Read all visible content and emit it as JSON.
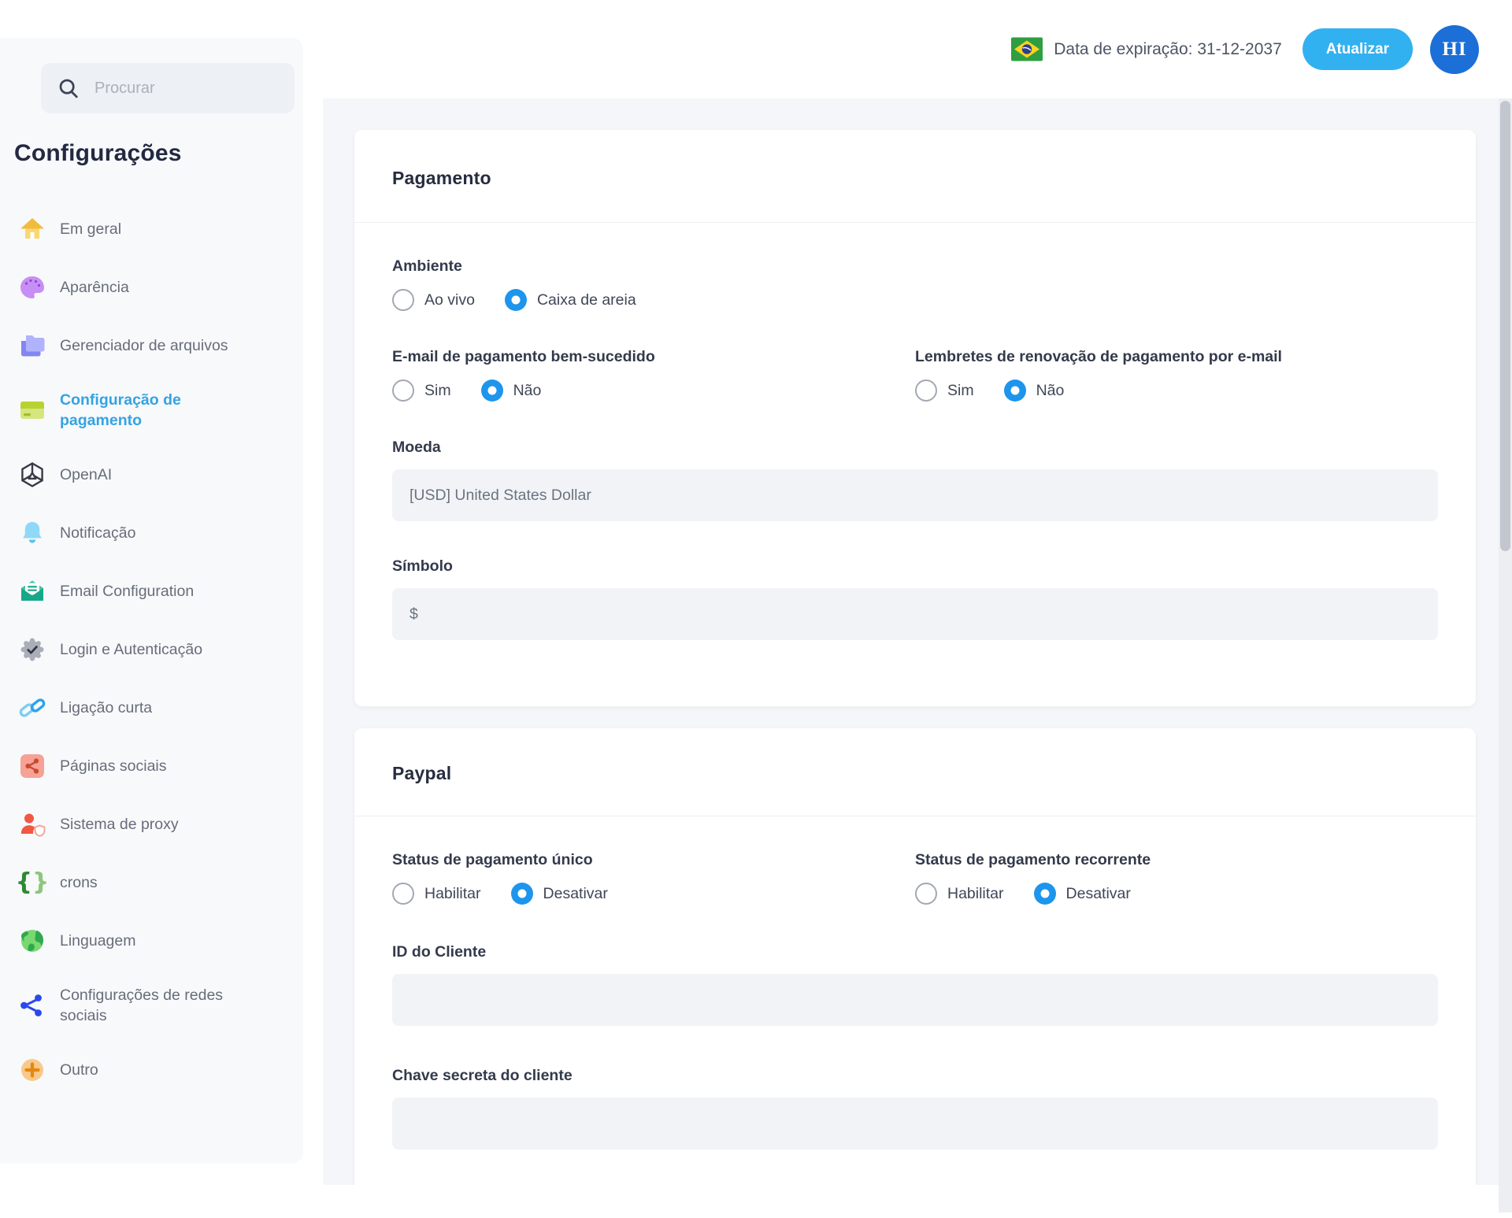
{
  "sidebar": {
    "search_placeholder": "Procurar",
    "title": "Configurações",
    "items": [
      {
        "label": "Em geral",
        "icon": "home",
        "active": false
      },
      {
        "label": "Aparência",
        "icon": "palette",
        "active": false
      },
      {
        "label": "Gerenciador de arquivos",
        "icon": "folder",
        "active": false
      },
      {
        "label": "Configuração de pagamento",
        "icon": "credit-card",
        "active": true
      },
      {
        "label": "OpenAI",
        "icon": "openai",
        "active": false
      },
      {
        "label": "Notificação",
        "icon": "bell",
        "active": false
      },
      {
        "label": "Email Configuration",
        "icon": "envelope",
        "active": false
      },
      {
        "label": "Login e Autenticação",
        "icon": "badge-check",
        "active": false
      },
      {
        "label": "Ligação curta",
        "icon": "link",
        "active": false
      },
      {
        "label": "Páginas sociais",
        "icon": "share-square",
        "active": false
      },
      {
        "label": "Sistema de proxy",
        "icon": "user-shield",
        "active": false
      },
      {
        "label": "crons",
        "icon": "braces",
        "active": false
      },
      {
        "label": "Linguagem",
        "icon": "globe",
        "active": false
      },
      {
        "label": "Configurações de redes sociais",
        "icon": "share-nodes",
        "active": false
      },
      {
        "label": "Outro",
        "icon": "plus-circle",
        "active": false
      }
    ]
  },
  "topbar": {
    "flag_icon": "brazil-flag",
    "expiration_text": "Data de expiração: 31-12-2037",
    "update_button": "Atualizar",
    "avatar_initials": "HI"
  },
  "payment_card": {
    "title": "Pagamento",
    "ambiente": {
      "label": "Ambiente",
      "options": [
        {
          "label": "Ao vivo",
          "selected": false
        },
        {
          "label": "Caixa de areia",
          "selected": true
        }
      ]
    },
    "email_success": {
      "label": "E-mail de pagamento bem-sucedido",
      "options": [
        {
          "label": "Sim",
          "selected": false
        },
        {
          "label": "Não",
          "selected": true
        }
      ]
    },
    "renewal_reminders": {
      "label": "Lembretes de renovação de pagamento por e-mail",
      "options": [
        {
          "label": "Sim",
          "selected": false
        },
        {
          "label": "Não",
          "selected": true
        }
      ]
    },
    "moeda": {
      "label": "Moeda",
      "value": "[USD] United States Dollar"
    },
    "simbolo": {
      "label": "Símbolo",
      "value": "$"
    }
  },
  "paypal_card": {
    "title": "Paypal",
    "single_payment": {
      "label": "Status de pagamento único",
      "options": [
        {
          "label": "Habilitar",
          "selected": false
        },
        {
          "label": "Desativar",
          "selected": true
        }
      ]
    },
    "recurring_payment": {
      "label": "Status de pagamento recorrente",
      "options": [
        {
          "label": "Habilitar",
          "selected": false
        },
        {
          "label": "Desativar",
          "selected": true
        }
      ]
    },
    "client_id": {
      "label": "ID do Cliente",
      "value": ""
    },
    "client_secret": {
      "label": "Chave secreta do cliente",
      "value": ""
    }
  },
  "colors": {
    "radio_checked_blue": "#1e95ec",
    "update_button_blue": "#32b1f1",
    "avatar_blue": "#1b6fd6",
    "active_sidebar_item": "#35a3e2",
    "sidebar_bg": "#f8f9fb",
    "content_bg": "#f5f6f9",
    "input_bg": "#f1f3f7",
    "flag_green": "#2f9e41",
    "flag_yellow": "#ffd21c",
    "flag_blue": "#27408f"
  }
}
